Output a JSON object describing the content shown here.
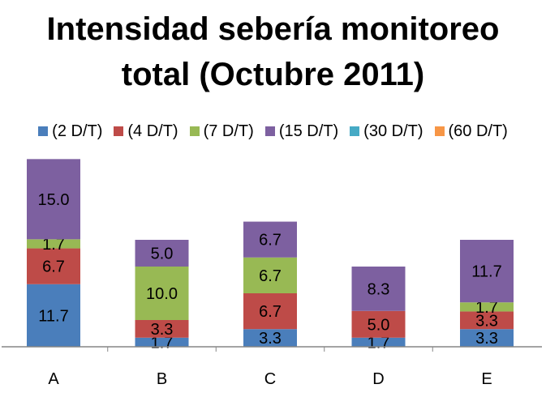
{
  "chart_data": {
    "type": "bar",
    "stacked": true,
    "title_lines": [
      "Intensidad sebería monitoreo",
      "total (Octubre 2011)"
    ],
    "categories": [
      "A",
      "B",
      "C",
      "D",
      "E"
    ],
    "series": [
      {
        "name": "(2 D/T)",
        "color": "#4a7ebb",
        "values": [
          11.7,
          1.7,
          3.3,
          1.7,
          3.3
        ]
      },
      {
        "name": "(4 D/T)",
        "color": "#be4b48",
        "values": [
          6.7,
          3.3,
          6.7,
          5.0,
          3.3
        ]
      },
      {
        "name": "(7 D/T)",
        "color": "#98b954",
        "values": [
          1.7,
          10.0,
          6.7,
          null,
          1.7
        ]
      },
      {
        "name": "(15 D/T)",
        "color": "#7d60a0",
        "values": [
          15.0,
          5.0,
          6.7,
          8.3,
          11.7
        ]
      },
      {
        "name": "(30 D/T)",
        "color": "#46aac5",
        "values": [
          null,
          null,
          null,
          null,
          null
        ]
      },
      {
        "name": "(60 D/T)",
        "color": "#f79646",
        "values": [
          null,
          null,
          null,
          null,
          null
        ]
      }
    ],
    "legend_position": "top",
    "grid": false,
    "ylim": [
      0,
      40
    ]
  }
}
